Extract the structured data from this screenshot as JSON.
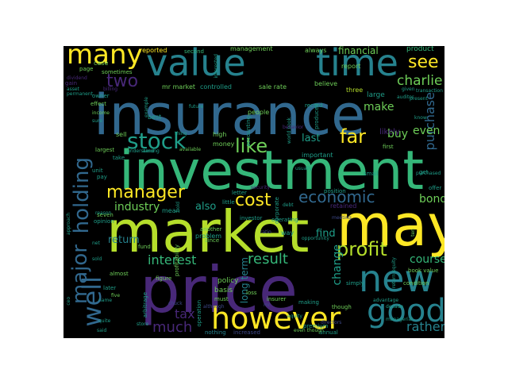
{
  "palette": {
    "yellow": "#fde725",
    "lime": "#b5de2b",
    "green": "#6ece58",
    "seafoam": "#35b779",
    "teal": "#1f9e89",
    "cyan": "#26828e",
    "blue": "#31688e",
    "indigo": "#3e4989",
    "purple": "#482878",
    "violet": "#440154"
  },
  "words": [
    {
      "text": "insurance",
      "color": "blue"
    },
    {
      "text": "investment",
      "color": "seafoam"
    },
    {
      "text": "market",
      "color": "lime"
    },
    {
      "text": "may",
      "color": "yellow"
    },
    {
      "text": "price",
      "color": "purple"
    },
    {
      "text": "value",
      "color": "cyan"
    },
    {
      "text": "time",
      "color": "cyan"
    },
    {
      "text": "new",
      "color": "cyan"
    },
    {
      "text": "good",
      "color": "cyan"
    },
    {
      "text": "however",
      "color": "yellow"
    },
    {
      "text": "many",
      "color": "yellow"
    },
    {
      "text": "stock",
      "color": "teal"
    },
    {
      "text": "like",
      "color": "green"
    },
    {
      "text": "profit",
      "color": "lime"
    },
    {
      "text": "manager",
      "color": "yellow"
    },
    {
      "text": "cost",
      "color": "yellow"
    },
    {
      "text": "economic",
      "color": "blue"
    },
    {
      "text": "far",
      "color": "yellow"
    },
    {
      "text": "see",
      "color": "yellow"
    },
    {
      "text": "two",
      "color": "purple"
    },
    {
      "text": "charlie",
      "color": "green"
    },
    {
      "text": "major",
      "color": "blue"
    },
    {
      "text": "holding",
      "color": "blue"
    },
    {
      "text": "well",
      "color": "blue"
    },
    {
      "text": "interest",
      "color": "seafoam"
    },
    {
      "text": "result",
      "color": "seafoam"
    },
    {
      "text": "much",
      "color": "purple"
    },
    {
      "text": "tax",
      "color": "purple"
    },
    {
      "text": "rather",
      "color": "cyan"
    },
    {
      "text": "course",
      "color": "seafoam"
    },
    {
      "text": "bond",
      "color": "green"
    },
    {
      "text": "purchase",
      "color": "blue"
    },
    {
      "text": "buy",
      "color": "green"
    },
    {
      "text": "even",
      "color": "green"
    },
    {
      "text": "make",
      "color": "green"
    },
    {
      "text": "last",
      "color": "teal"
    },
    {
      "text": "find",
      "color": "teal"
    },
    {
      "text": "change",
      "color": "teal"
    },
    {
      "text": "also",
      "color": "teal"
    },
    {
      "text": "financial",
      "color": "green"
    },
    {
      "text": "industry",
      "color": "green"
    },
    {
      "text": "return",
      "color": "cyan"
    },
    {
      "text": "long term",
      "color": "cyan"
    },
    {
      "text": "product",
      "color": "seafoam"
    },
    {
      "text": "management",
      "color": "green"
    },
    {
      "text": "reported",
      "color": "yellow"
    },
    {
      "text": "second",
      "color": "seafoam"
    },
    {
      "text": "always",
      "color": "green"
    },
    {
      "text": "report",
      "color": "green"
    },
    {
      "text": "believe",
      "color": "green"
    },
    {
      "text": "three",
      "color": "lime"
    },
    {
      "text": "record",
      "color": "teal"
    },
    {
      "text": "large",
      "color": "teal"
    },
    {
      "text": "people",
      "color": "green"
    },
    {
      "text": "high",
      "color": "green"
    },
    {
      "text": "money",
      "color": "green"
    },
    {
      "text": "controlled",
      "color": "teal"
    },
    {
      "text": "sale rate",
      "color": "green"
    },
    {
      "text": "mr market",
      "color": "green"
    },
    {
      "text": "first",
      "color": "green"
    },
    {
      "text": "likely",
      "color": "purple"
    },
    {
      "text": "sell",
      "color": "green"
    },
    {
      "text": "largest",
      "color": "green"
    },
    {
      "text": "available",
      "color": "green"
    },
    {
      "text": "best",
      "color": "teal"
    },
    {
      "text": "sometimes",
      "color": "green"
    },
    {
      "text": "case",
      "color": "green"
    },
    {
      "text": "page",
      "color": "green"
    },
    {
      "text": "owner",
      "color": "teal"
    },
    {
      "text": "effect",
      "color": "green"
    },
    {
      "text": "gain",
      "color": "purple"
    },
    {
      "text": "income",
      "color": "green"
    },
    {
      "text": "unit",
      "color": "teal"
    },
    {
      "text": "take",
      "color": "teal"
    },
    {
      "text": "pay",
      "color": "teal"
    },
    {
      "text": "mean",
      "color": "teal"
    },
    {
      "text": "letter",
      "color": "teal"
    },
    {
      "text": "little",
      "color": "teal"
    },
    {
      "text": "important",
      "color": "teal"
    },
    {
      "text": "operating",
      "color": "teal"
    },
    {
      "text": "investor",
      "color": "teal"
    },
    {
      "text": "debt",
      "color": "teal"
    },
    {
      "text": "position",
      "color": "teal"
    },
    {
      "text": "small",
      "color": "teal"
    },
    {
      "text": "get",
      "color": "teal"
    },
    {
      "text": "offer",
      "color": "teal"
    },
    {
      "text": "since",
      "color": "green"
    },
    {
      "text": "another",
      "color": "green"
    },
    {
      "text": "problem",
      "color": "teal"
    },
    {
      "text": "seven",
      "color": "green"
    },
    {
      "text": "opinion",
      "color": "teal"
    },
    {
      "text": "almost",
      "color": "green"
    },
    {
      "text": "fund",
      "color": "green"
    },
    {
      "text": "later",
      "color": "teal"
    },
    {
      "text": "five",
      "color": "green"
    },
    {
      "text": "figure",
      "color": "green"
    },
    {
      "text": "policy",
      "color": "green"
    },
    {
      "text": "basis",
      "color": "green"
    },
    {
      "text": "must",
      "color": "green"
    },
    {
      "text": "loss",
      "color": "green"
    },
    {
      "text": "insurer",
      "color": "green"
    },
    {
      "text": "book value",
      "color": "green"
    },
    {
      "text": "condition",
      "color": "green"
    },
    {
      "text": "simply",
      "color": "teal"
    },
    {
      "text": "though",
      "color": "green"
    },
    {
      "text": "annual",
      "color": "teal"
    },
    {
      "text": "premium",
      "color": "teal"
    },
    {
      "text": "making",
      "color": "teal"
    },
    {
      "text": "advantage",
      "color": "teal"
    },
    {
      "text": "decade",
      "color": "teal"
    },
    {
      "text": "ten",
      "color": "green"
    },
    {
      "text": "meeting",
      "color": "indigo"
    },
    {
      "text": "increased",
      "color": "indigo"
    },
    {
      "text": "nothing",
      "color": "cyan"
    },
    {
      "text": "operation",
      "color": "teal"
    },
    {
      "text": "arbitrage",
      "color": "teal"
    },
    {
      "text": "profitability",
      "color": "green"
    },
    {
      "text": "approach",
      "color": "teal"
    },
    {
      "text": "corporate",
      "color": "teal"
    },
    {
      "text": "accounting",
      "color": "teal"
    },
    {
      "text": "produced",
      "color": "teal"
    },
    {
      "text": "world book",
      "color": "teal"
    },
    {
      "text": "present",
      "color": "teal"
    },
    {
      "text": "given",
      "color": "teal"
    },
    {
      "text": "future",
      "color": "teal"
    },
    {
      "text": "example",
      "color": "teal"
    },
    {
      "text": "interested",
      "color": "teal"
    },
    {
      "text": "reason",
      "color": "teal"
    },
    {
      "text": "sold",
      "color": "teal"
    },
    {
      "text": "quite",
      "color": "teal"
    },
    {
      "text": "said",
      "color": "teal"
    },
    {
      "text": "store",
      "color": "teal"
    },
    {
      "text": "equity",
      "color": "teal"
    },
    {
      "text": "managerial",
      "color": "teal"
    },
    {
      "text": "mr",
      "color": "indigo"
    },
    {
      "text": "although",
      "color": "indigo"
    },
    {
      "text": "chuck",
      "color": "indigo"
    },
    {
      "text": "directors",
      "color": "indigo"
    },
    {
      "text": "even though",
      "color": "green"
    },
    {
      "text": "ceo",
      "color": "teal"
    },
    {
      "text": "net",
      "color": "teal"
    },
    {
      "text": "name",
      "color": "teal"
    },
    {
      "text": "auditor",
      "color": "teal"
    },
    {
      "text": "know",
      "color": "teal"
    },
    {
      "text": "sure",
      "color": "teal"
    },
    {
      "text": "transaction",
      "color": "teal"
    },
    {
      "text": "thing",
      "color": "teal"
    },
    {
      "text": "understand",
      "color": "teal"
    },
    {
      "text": "among",
      "color": "teal"
    },
    {
      "text": "purchased",
      "color": "teal"
    },
    {
      "text": "security",
      "color": "purple"
    },
    {
      "text": "way",
      "color": "teal"
    },
    {
      "text": "retained",
      "color": "purple"
    },
    {
      "text": "opportunity",
      "color": "teal"
    },
    {
      "text": "return equity",
      "color": "teal"
    },
    {
      "text": "hold",
      "color": "teal"
    },
    {
      "text": "usually",
      "color": "teal"
    },
    {
      "text": "permanent",
      "color": "teal"
    },
    {
      "text": "asset",
      "color": "teal"
    },
    {
      "text": "billing",
      "color": "purple"
    },
    {
      "text": "behavior",
      "color": "purple"
    },
    {
      "text": "ratio",
      "color": "indigo"
    },
    {
      "text": "dividend",
      "color": "purple"
    }
  ]
}
